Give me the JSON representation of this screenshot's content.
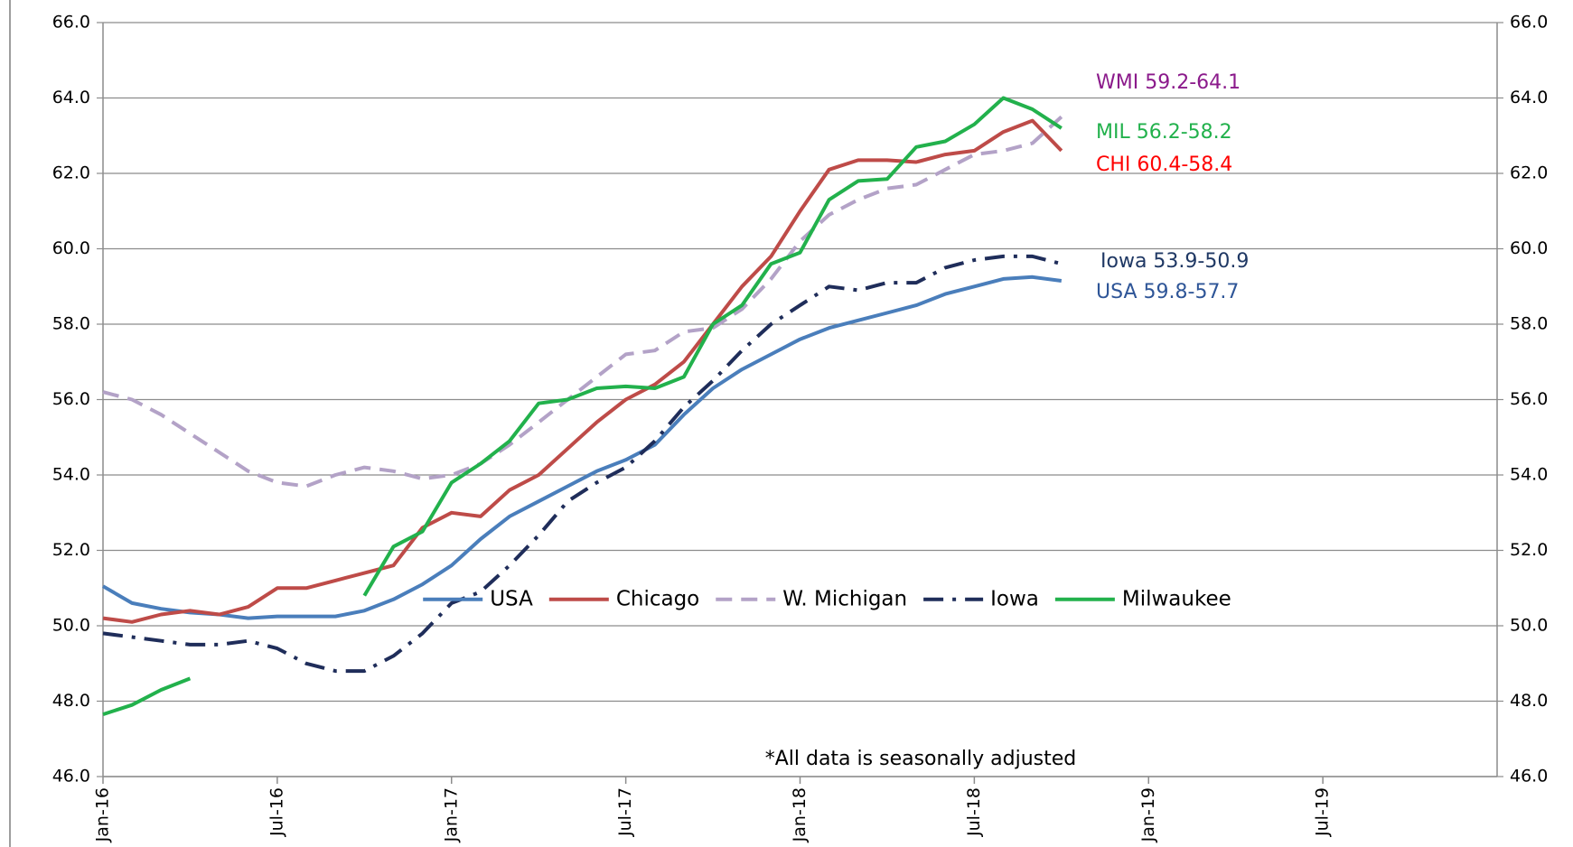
{
  "chart_data": {
    "type": "line",
    "categories": [
      "Jan-16",
      null,
      null,
      null,
      null,
      null,
      "Jul-16",
      null,
      null,
      null,
      null,
      null,
      "Jan-17",
      null,
      null,
      null,
      null,
      null,
      "Jul-17",
      null,
      null,
      null,
      null,
      null,
      "Jan-18",
      null,
      null,
      null,
      null,
      null,
      "Jul-18",
      null,
      null,
      null,
      null,
      null,
      "Jan-19",
      null,
      null,
      null,
      null,
      null,
      "Jul-19",
      null,
      null,
      null,
      null,
      null
    ],
    "series": [
      {
        "name": "USA",
        "color": "#4a7ebb",
        "dash": "solid",
        "values": [
          51.05,
          50.6,
          50.45,
          50.35,
          50.3,
          50.2,
          50.25,
          50.25,
          50.25,
          50.4,
          50.7,
          51.1,
          51.6,
          52.3,
          52.9,
          53.3,
          53.7,
          54.1,
          54.4,
          54.8,
          55.6,
          56.3,
          56.8,
          57.2,
          57.6,
          57.9,
          58.1,
          58.3,
          58.5,
          58.8,
          59.0,
          59.2,
          59.25,
          59.15,
          null,
          null,
          null,
          null,
          null,
          null,
          null,
          null,
          null,
          null,
          null,
          null,
          null,
          null
        ]
      },
      {
        "name": "Chicago",
        "color": "#be4b48",
        "dash": "solid",
        "values": [
          50.2,
          50.1,
          50.3,
          50.4,
          50.3,
          50.5,
          51.0,
          51.0,
          51.2,
          51.4,
          51.6,
          52.6,
          53.0,
          52.9,
          53.6,
          54.0,
          54.7,
          55.4,
          56.0,
          56.4,
          57.0,
          58.0,
          59.0,
          59.8,
          61.0,
          62.1,
          62.35,
          62.35,
          62.3,
          62.5,
          62.6,
          63.1,
          63.4,
          62.6,
          null,
          null,
          null,
          null,
          null,
          null,
          null,
          null,
          null,
          null,
          null,
          null,
          null,
          null
        ]
      },
      {
        "name": "W. Michigan",
        "color": "#b3a2c7",
        "dash": "dashed",
        "values": [
          56.2,
          56.0,
          55.6,
          55.1,
          54.6,
          54.1,
          53.8,
          53.7,
          54.0,
          54.2,
          54.1,
          53.9,
          54.0,
          54.3,
          54.8,
          55.4,
          56.0,
          56.6,
          57.2,
          57.3,
          57.8,
          57.9,
          58.4,
          59.2,
          60.2,
          60.9,
          61.3,
          61.6,
          61.7,
          62.1,
          62.5,
          62.6,
          62.8,
          63.5,
          null,
          null,
          null,
          null,
          null,
          null,
          null,
          null,
          null,
          null,
          null,
          null,
          null,
          null
        ]
      },
      {
        "name": "Iowa",
        "color": "#1f2d5a",
        "dash": "dashdot",
        "values": [
          49.8,
          49.7,
          49.6,
          49.5,
          49.5,
          49.6,
          49.4,
          49.0,
          48.8,
          48.8,
          49.2,
          49.8,
          50.6,
          50.9,
          51.6,
          52.4,
          53.3,
          53.8,
          54.2,
          54.9,
          55.8,
          56.5,
          57.3,
          58.0,
          58.5,
          59.0,
          58.9,
          59.1,
          59.1,
          59.5,
          59.7,
          59.8,
          59.8,
          59.6,
          null,
          null,
          null,
          null,
          null,
          null,
          null,
          null,
          null,
          null,
          null,
          null,
          null,
          null
        ]
      },
      {
        "name": "Milwaukee",
        "color": "#22b14c",
        "dash": "solid",
        "values": [
          47.65,
          47.9,
          48.3,
          48.6,
          null,
          null,
          null,
          null,
          null,
          50.8,
          52.1,
          52.5,
          53.8,
          54.3,
          54.9,
          55.9,
          56.0,
          56.3,
          56.35,
          56.3,
          56.6,
          58.0,
          58.5,
          59.6,
          59.9,
          61.3,
          61.8,
          61.85,
          62.7,
          62.85,
          63.3,
          64.0,
          63.7,
          63.2,
          null,
          null,
          null,
          null,
          null,
          null,
          null,
          null,
          null,
          null,
          null,
          null,
          null,
          null
        ]
      }
    ],
    "ylim": [
      46,
      66
    ],
    "yticks": [
      {
        "value": 46,
        "label": "46.0"
      },
      {
        "value": 48,
        "label": "48.0"
      },
      {
        "value": 50,
        "label": "50.0"
      },
      {
        "value": 52,
        "label": "52.0"
      },
      {
        "value": 54,
        "label": "54.0"
      },
      {
        "value": 56,
        "label": "56.0"
      },
      {
        "value": 58,
        "label": "58.0"
      },
      {
        "value": 60,
        "label": "60.0"
      },
      {
        "value": 62,
        "label": "62.0"
      },
      {
        "value": 64,
        "label": "64.0"
      },
      {
        "value": 66,
        "label": "66.0"
      }
    ],
    "y2lim": [
      46,
      66
    ],
    "y2ticks": [
      {
        "value": 46,
        "label": "46.0"
      },
      {
        "value": 48,
        "label": "48.0"
      },
      {
        "value": 50,
        "label": "50.0"
      },
      {
        "value": 52,
        "label": "52.0"
      },
      {
        "value": 54,
        "label": "54.0"
      },
      {
        "value": 56,
        "label": "56.0"
      },
      {
        "value": 58,
        "label": "58.0"
      },
      {
        "value": 60,
        "label": "60.0"
      },
      {
        "value": 62,
        "label": "62.0"
      },
      {
        "value": 64,
        "label": "64.0"
      },
      {
        "value": 66,
        "label": "66.0"
      }
    ],
    "grid": true,
    "legend": "center",
    "annotations": [
      {
        "text": "WMI 59.2-64.1",
        "color": "#8b1a8b"
      },
      {
        "text": "MIL 56.2-58.2",
        "color": "#22b14c"
      },
      {
        "text": "CHI 60.4-58.4",
        "color": "#ff0000"
      },
      {
        "text": "Iowa 53.9-50.9",
        "color": "#1f3864"
      },
      {
        "text": "USA 59.8-57.7",
        "color": "#2e5597"
      }
    ],
    "note": "*All data is seasonally adjusted"
  }
}
